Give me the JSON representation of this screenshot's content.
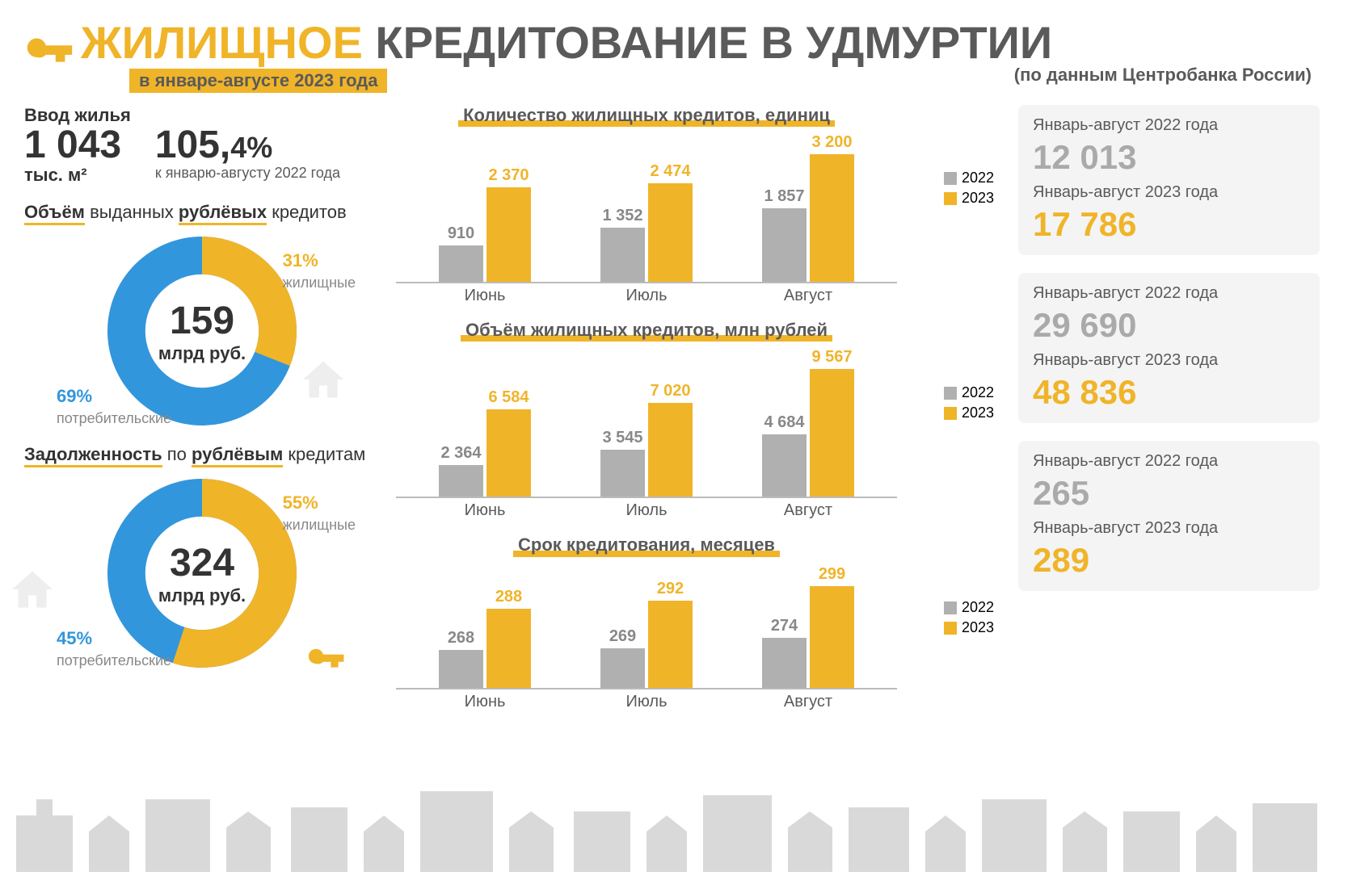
{
  "header": {
    "title_highlight": "ЖИЛИЩНОЕ",
    "title_rest": " КРЕДИТОВАНИЕ В УДМУРТИИ",
    "subtitle": "в январе-августе 2023 года",
    "source": "(по данным Центробанка России)"
  },
  "colors": {
    "accent": "#f0b429",
    "gray_text": "#5a5a5a",
    "blue": "#3296dc",
    "bar_gray": "#b0b0b0",
    "bg_panel": "#f4f4f4"
  },
  "left": {
    "housing": {
      "label": "Ввод жилья",
      "value": "1 043",
      "unit": "тыс. м²"
    },
    "growth": {
      "value_int": "105,",
      "value_dec": "4%",
      "note": "к январю-августу 2022 года"
    },
    "volume_title_parts": [
      "Объём",
      " выданных ",
      "рублёвых",
      " кредитов"
    ],
    "donut1": {
      "center_value": "159",
      "center_unit": "млрд руб.",
      "yellow_pct": 31,
      "yellow_label": "31%",
      "yellow_sub": "жилищные",
      "blue_pct": 69,
      "blue_label": "69%",
      "blue_sub": "потребительские"
    },
    "debt_title_parts": [
      "Задолженность",
      " по ",
      "рублёвым",
      " кредитам"
    ],
    "donut2": {
      "center_value": "324",
      "center_unit": "млрд руб.",
      "yellow_pct": 55,
      "yellow_label": "55%",
      "yellow_sub": "жилищные",
      "blue_pct": 45,
      "blue_label": "45%",
      "blue_sub": "потребительские"
    }
  },
  "charts": {
    "months": [
      "Июнь",
      "Июль",
      "Август"
    ],
    "legend": {
      "y2022": "2022",
      "y2023": "2023"
    },
    "count": {
      "title": "Количество жилищных кредитов, единиц",
      "y2022": [
        910,
        1352,
        1857
      ],
      "y2022_labels": [
        "910",
        "1 352",
        "1 857"
      ],
      "y2023": [
        2370,
        2474,
        3200
      ],
      "y2023_labels": [
        "2 370",
        "2 474",
        "3 200"
      ],
      "max": 3200
    },
    "volume": {
      "title": "Объём жилищных кредитов, млн рублей",
      "y2022": [
        2364,
        3545,
        4684
      ],
      "y2022_labels": [
        "2 364",
        "3 545",
        "4 684"
      ],
      "y2023": [
        6584,
        7020,
        9567
      ],
      "y2023_labels": [
        "6 584",
        "7 020",
        "9 567"
      ],
      "max": 9567
    },
    "term": {
      "title": "Срок кредитования, месяцев",
      "y2022": [
        268,
        269,
        274
      ],
      "y2022_labels": [
        "268",
        "269",
        "274"
      ],
      "y2023": [
        288,
        292,
        299
      ],
      "y2023_labels": [
        "288",
        "292",
        "299"
      ],
      "min": 250,
      "max": 300
    }
  },
  "summaries": {
    "label_2022": "Январь-август 2022 года",
    "label_2023": "Январь-август 2023 года",
    "count": {
      "v2022": "12 013",
      "v2023": "17 786"
    },
    "volume": {
      "v2022": "29 690",
      "v2023": "48 836"
    },
    "term": {
      "v2022": "265",
      "v2023": "289"
    }
  }
}
